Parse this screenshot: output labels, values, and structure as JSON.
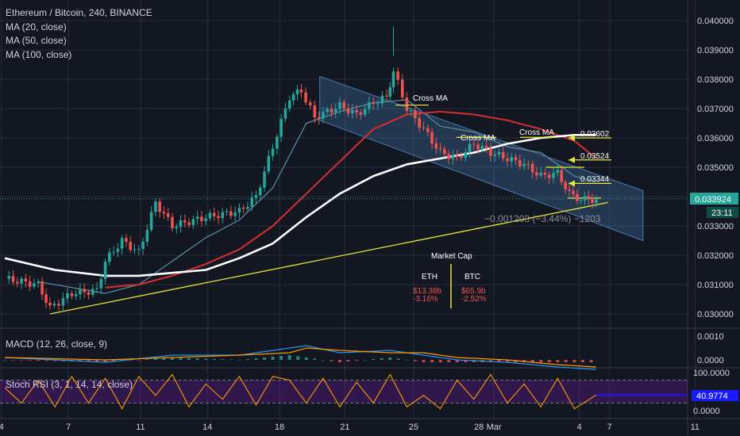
{
  "header": {
    "symbol_title": "Ethereum / Bitcoin, 240, BINANCE",
    "indicators": [
      "MA (20, close)",
      "MA (50, close)",
      "MA (100, close)"
    ],
    "macd_label": "MACD (12, 26, close, 9)",
    "stoch_label": "Stoch RSI (3, 1, 14, 14, close)"
  },
  "price_axis": {
    "ticks": [
      "0.040000",
      "0.039000",
      "0.038000",
      "0.037000",
      "0.036000",
      "0.035000",
      "0.034000",
      "0.033000",
      "0.032000",
      "0.031000",
      "0.030000"
    ],
    "current_price": "0.033924",
    "countdown": "23:11"
  },
  "macd_axis": {
    "ticks": [
      "0.0010",
      "0.0000"
    ]
  },
  "stoch_axis": {
    "ticks": [
      "100.0000",
      "0.0000"
    ],
    "current": "40.9774"
  },
  "time_axis": {
    "ticks": [
      "4",
      "7",
      "11",
      "14",
      "18",
      "21",
      "25",
      "28",
      "Mar",
      "4",
      "7",
      "11"
    ]
  },
  "annotations": {
    "cross_ma_1": "Cross MA",
    "cross_ma_2": "Cross MA",
    "cross_ma_3": "Cross MA",
    "level_1": "0.03602",
    "level_2": "0.03524",
    "level_3": "0.03344",
    "measure": "−0.001203 (−3.44%) −1203",
    "market_cap": {
      "title": "Market Cap",
      "eth_label": "ETH",
      "btc_label": "BTC",
      "eth_value": "$13.38b",
      "eth_change": "-3.16%",
      "btc_value": "$65.9b",
      "btc_change": "-2.52%"
    }
  },
  "colors": {
    "background": "#131722",
    "grid": "#2a2e39",
    "up": "#26a69a",
    "down": "#ef5350",
    "ma20": "#5d8fa8",
    "ma50": "#d32f2f",
    "ma100": "#ffffff",
    "trend": "#e6e639",
    "channel": "#4a7bb0",
    "macd": "#2196f3",
    "signal": "#ff9800",
    "stoch_k": "#ff9800",
    "stoch_band": "#6a1b9a",
    "stoch_marker": "#1a1aff",
    "price_label": "#26a69a"
  },
  "chart_data": {
    "type": "candlestick",
    "pair": "ETH/BTC",
    "timeframe": "240",
    "exchange": "BINANCE",
    "y_range": [
      0.0296,
      0.0404
    ],
    "moving_averages": {
      "MA 20": [
        [
          2,
          0.0311
        ],
        [
          6,
          0.0307
        ],
        [
          8,
          0.031
        ],
        [
          10,
          0.0318
        ],
        [
          12,
          0.0326
        ],
        [
          14,
          0.0332
        ],
        [
          16,
          0.0343
        ],
        [
          18,
          0.0365
        ],
        [
          20,
          0.0369
        ],
        [
          22,
          0.0372
        ],
        [
          24,
          0.0373
        ],
        [
          26,
          0.0364
        ],
        [
          28,
          0.0362
        ],
        [
          30,
          0.0357
        ],
        [
          32,
          0.0355
        ],
        [
          34,
          0.0347
        ],
        [
          35.3,
          0.0345
        ]
      ],
      "MA 50": [
        [
          6,
          0.0309
        ],
        [
          8,
          0.031
        ],
        [
          10,
          0.0313
        ],
        [
          12,
          0.0317
        ],
        [
          14,
          0.0322
        ],
        [
          16,
          0.033
        ],
        [
          18,
          0.0341
        ],
        [
          20,
          0.0352
        ],
        [
          22,
          0.0363
        ],
        [
          24,
          0.0368
        ],
        [
          26,
          0.0369
        ],
        [
          28,
          0.0368
        ],
        [
          30,
          0.0366
        ],
        [
          32,
          0.0363
        ],
        [
          34,
          0.0359
        ],
        [
          35.3,
          0.0353
        ]
      ],
      "MA 100": [
        [
          0,
          0.0319
        ],
        [
          3,
          0.0315
        ],
        [
          6,
          0.0313
        ],
        [
          8,
          0.0313
        ],
        [
          10,
          0.0314
        ],
        [
          12,
          0.0315
        ],
        [
          14,
          0.0319
        ],
        [
          16,
          0.0324
        ],
        [
          18,
          0.0333
        ],
        [
          20,
          0.0341
        ],
        [
          22,
          0.0347
        ],
        [
          24,
          0.0351
        ],
        [
          26,
          0.0353
        ],
        [
          28,
          0.0355
        ],
        [
          30,
          0.0358
        ],
        [
          32,
          0.036
        ],
        [
          34,
          0.0361
        ],
        [
          35.3,
          0.0361
        ]
      ]
    },
    "price_path": [
      [
        0,
        0.0312
      ],
      [
        2,
        0.031
      ],
      [
        2.7,
        0.0302
      ],
      [
        4,
        0.0307
      ],
      [
        5.5,
        0.0308
      ],
      [
        6,
        0.0318
      ],
      [
        7,
        0.0325
      ],
      [
        8,
        0.0321
      ],
      [
        9,
        0.0338
      ],
      [
        10,
        0.033
      ],
      [
        12,
        0.0333
      ],
      [
        14,
        0.0335
      ],
      [
        15,
        0.034
      ],
      [
        16,
        0.0357
      ],
      [
        17,
        0.0374
      ],
      [
        17.7,
        0.0376
      ],
      [
        18.5,
        0.0367
      ],
      [
        20,
        0.0371
      ],
      [
        21,
        0.0368
      ],
      [
        22,
        0.0372
      ],
      [
        22.8,
        0.0374
      ],
      [
        23.2,
        0.0383
      ],
      [
        24,
        0.037
      ],
      [
        25,
        0.0363
      ],
      [
        26,
        0.0355
      ],
      [
        27,
        0.0353
      ],
      [
        28,
        0.0358
      ],
      [
        29,
        0.0355
      ],
      [
        30,
        0.0353
      ],
      [
        31,
        0.0351
      ],
      [
        32,
        0.0347
      ],
      [
        33,
        0.0348
      ],
      [
        33.7,
        0.0341
      ],
      [
        34.4,
        0.0339
      ],
      [
        35.3,
        0.0339
      ]
    ],
    "trendline": [
      [
        2.7,
        0.03
      ],
      [
        36,
        0.0338
      ]
    ],
    "channel": {
      "upper": [
        [
          18.8,
          0.0381
        ],
        [
          38.1,
          0.0342
        ]
      ],
      "lower": [
        [
          18.8,
          0.0366
        ],
        [
          38.1,
          0.0325
        ]
      ]
    },
    "levels": [
      0.03602,
      0.03524,
      0.03344
    ],
    "current_price": 0.033924,
    "macd": {
      "macd": [
        [
          0,
          0.0001
        ],
        [
          6,
          -0.0001
        ],
        [
          10,
          0.0002
        ],
        [
          14,
          0.0002
        ],
        [
          17,
          0.0005
        ],
        [
          18,
          0.0006
        ],
        [
          20,
          0.0003
        ],
        [
          23,
          0.0004
        ],
        [
          25,
          0.0002
        ],
        [
          27,
          0.0
        ],
        [
          30,
          -0.0001
        ],
        [
          33,
          -0.0003
        ],
        [
          35.3,
          -0.0004
        ]
      ],
      "signal": [
        [
          0,
          0.0001
        ],
        [
          6,
          0.0
        ],
        [
          10,
          0.0001
        ],
        [
          14,
          0.0002
        ],
        [
          17,
          0.0003
        ],
        [
          18,
          0.0005
        ],
        [
          20,
          0.0004
        ],
        [
          23,
          0.0003
        ],
        [
          25,
          0.0003
        ],
        [
          27,
          0.0001
        ],
        [
          30,
          0.0
        ],
        [
          33,
          -0.0002
        ],
        [
          35.3,
          -0.0003
        ]
      ]
    },
    "stoch_rsi": {
      "k": [
        [
          0,
          60
        ],
        [
          1,
          20
        ],
        [
          2,
          80
        ],
        [
          3,
          10
        ],
        [
          4,
          90
        ],
        [
          5,
          20
        ],
        [
          6,
          85
        ],
        [
          7,
          5
        ],
        [
          8,
          90
        ],
        [
          9,
          40
        ],
        [
          10,
          95
        ],
        [
          11,
          10
        ],
        [
          12,
          70
        ],
        [
          13,
          30
        ],
        [
          14,
          90
        ],
        [
          15,
          15
        ],
        [
          16,
          90
        ],
        [
          17,
          80
        ],
        [
          18,
          20
        ],
        [
          19,
          85
        ],
        [
          20,
          10
        ],
        [
          21,
          75
        ],
        [
          22,
          20
        ],
        [
          23,
          95
        ],
        [
          24,
          10
        ],
        [
          25,
          40
        ],
        [
          26,
          5
        ],
        [
          27,
          80
        ],
        [
          28,
          30
        ],
        [
          29,
          95
        ],
        [
          30,
          20
        ],
        [
          31,
          70
        ],
        [
          32,
          10
        ],
        [
          33,
          85
        ],
        [
          34,
          5
        ],
        [
          35.3,
          41
        ]
      ],
      "current": 40.9774
    }
  }
}
